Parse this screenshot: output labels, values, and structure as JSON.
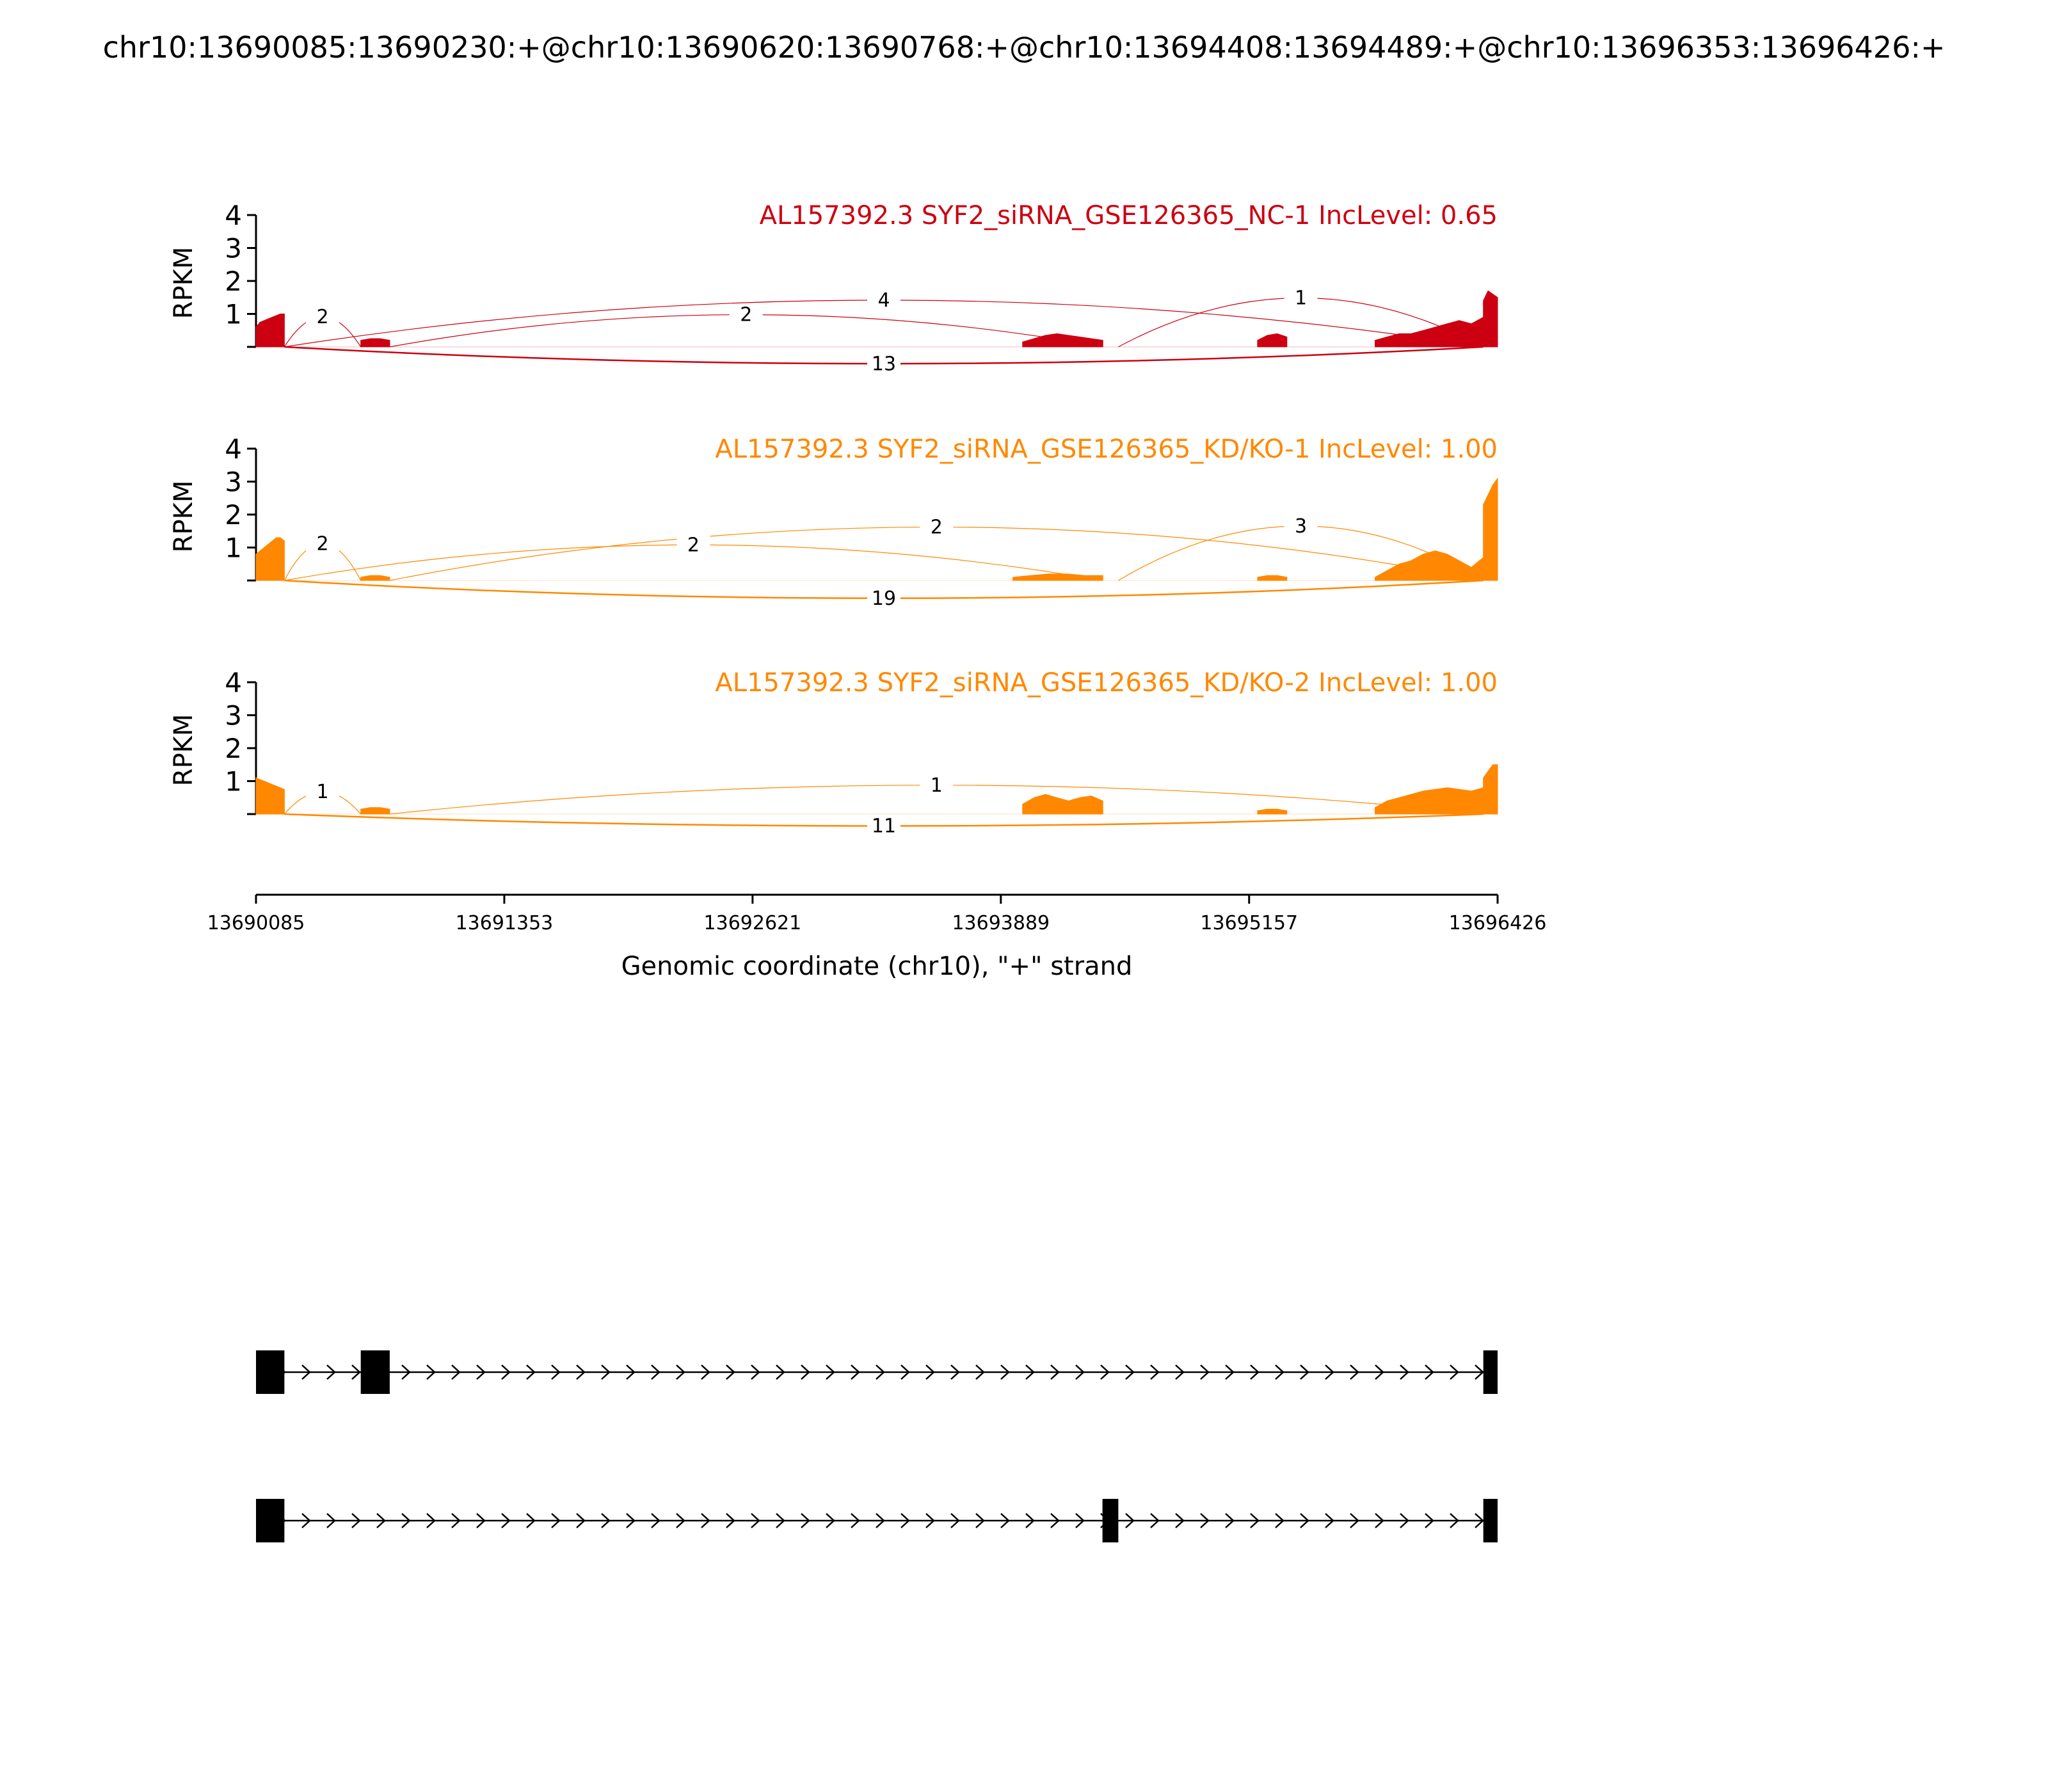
{
  "page_title": "chr10:13690085:13690230:+@chr10:13690620:13690768:+@chr10:13694408:13694489:+@chr10:13696353:13696426:+",
  "chart_data": {
    "type": "sashimi",
    "xlabel": "Genomic coordinate (chr10), \"+\" strand",
    "xlim": [
      13690085,
      13696426
    ],
    "xticks": [
      "13690085",
      "13691353",
      "13692621",
      "13693889",
      "13695157",
      "13696426"
    ],
    "ylabel": "RPKM",
    "yticks": [
      "1",
      "2",
      "3",
      "4"
    ],
    "ylim": [
      0,
      4
    ],
    "panels": [
      {
        "title": "AL157392.3 SYF2_siRNA_GSE126365_NC-1 IncLevel: 0.65",
        "color": "#cc0011",
        "coverage": [
          {
            "start": 13690085,
            "end": 13690230,
            "rpkm": [
              0.6,
              0.75,
              0.8,
              0.85,
              0.9,
              0.95,
              1.0,
              1.0
            ]
          },
          {
            "start": 13690620,
            "end": 13690768,
            "rpkm": [
              0.2,
              0.25,
              0.25,
              0.2
            ]
          },
          {
            "start": 13694000,
            "end": 13694410,
            "rpkm": [
              0.15,
              0.25,
              0.35,
              0.4,
              0.35,
              0.3,
              0.25,
              0.2
            ]
          },
          {
            "start": 13695200,
            "end": 13695350,
            "rpkm": [
              0.2,
              0.35,
              0.4,
              0.3
            ]
          },
          {
            "start": 13695800,
            "end": 13696353,
            "rpkm": [
              0.2,
              0.3,
              0.4,
              0.4,
              0.5,
              0.6,
              0.7,
              0.8,
              0.7,
              0.9
            ]
          },
          {
            "start": 13696353,
            "end": 13696426,
            "rpkm": [
              1.4,
              1.7,
              1.6,
              1.5
            ]
          }
        ],
        "junctions": [
          {
            "from": 13690230,
            "to": 13690620,
            "count": "2",
            "side": "above",
            "height": 1.35
          },
          {
            "from": 13690768,
            "to": 13694408,
            "count": "2",
            "side": "above",
            "height": 1.45
          },
          {
            "from": 13690230,
            "to": 13696353,
            "count": "4",
            "side": "above",
            "height": 2.1
          },
          {
            "from": 13694489,
            "to": 13696353,
            "count": "1",
            "side": "above",
            "height": 2.2
          },
          {
            "from": 13690230,
            "to": 13696353,
            "count": "13",
            "side": "below",
            "height": 0.85
          }
        ]
      },
      {
        "title": "AL157392.3 SYF2_siRNA_GSE126365_KD/KO-1 IncLevel: 1.00",
        "color": "#ff8800",
        "coverage": [
          {
            "start": 13690085,
            "end": 13690230,
            "rpkm": [
              0.8,
              0.9,
              1.0,
              1.1,
              1.2,
              1.3,
              1.3,
              1.2
            ]
          },
          {
            "start": 13690620,
            "end": 13690768,
            "rpkm": [
              0.1,
              0.15,
              0.15,
              0.1
            ]
          },
          {
            "start": 13693950,
            "end": 13694410,
            "rpkm": [
              0.1,
              0.15,
              0.2,
              0.2,
              0.15,
              0.15
            ]
          },
          {
            "start": 13695200,
            "end": 13695350,
            "rpkm": [
              0.1,
              0.15,
              0.15,
              0.1
            ]
          },
          {
            "start": 13695800,
            "end": 13696353,
            "rpkm": [
              0.1,
              0.3,
              0.5,
              0.6,
              0.8,
              0.9,
              0.8,
              0.6,
              0.4,
              0.7
            ]
          },
          {
            "start": 13696353,
            "end": 13696426,
            "rpkm": [
              2.3,
              2.6,
              2.9,
              3.1
            ]
          }
        ],
        "junctions": [
          {
            "from": 13690230,
            "to": 13690620,
            "count": "2",
            "side": "above",
            "height": 1.65
          },
          {
            "from": 13690768,
            "to": 13696353,
            "count": "2",
            "side": "above",
            "height": 2.4
          },
          {
            "from": 13690230,
            "to": 13694408,
            "count": "2",
            "side": "above",
            "height": 1.6
          },
          {
            "from": 13694489,
            "to": 13696353,
            "count": "3",
            "side": "above",
            "height": 2.45
          },
          {
            "from": 13690230,
            "to": 13696353,
            "count": "19",
            "side": "below",
            "height": 0.9
          }
        ]
      },
      {
        "title": "AL157392.3 SYF2_siRNA_GSE126365_KD/KO-2 IncLevel: 1.00",
        "color": "#ff8800",
        "coverage": [
          {
            "start": 13690085,
            "end": 13690230,
            "rpkm": [
              1.1,
              1.05,
              1.0,
              0.95,
              0.9,
              0.85,
              0.8,
              0.75
            ]
          },
          {
            "start": 13690620,
            "end": 13690768,
            "rpkm": [
              0.15,
              0.2,
              0.2,
              0.15
            ]
          },
          {
            "start": 13694000,
            "end": 13694410,
            "rpkm": [
              0.3,
              0.5,
              0.6,
              0.5,
              0.4,
              0.5,
              0.55,
              0.4
            ]
          },
          {
            "start": 13695200,
            "end": 13695350,
            "rpkm": [
              0.1,
              0.15,
              0.15,
              0.1
            ]
          },
          {
            "start": 13695800,
            "end": 13696353,
            "rpkm": [
              0.2,
              0.4,
              0.5,
              0.6,
              0.7,
              0.75,
              0.8,
              0.75,
              0.7,
              0.8
            ]
          },
          {
            "start": 13696353,
            "end": 13696426,
            "rpkm": [
              1.1,
              1.3,
              1.5,
              1.5
            ]
          }
        ],
        "junctions": [
          {
            "from": 13690230,
            "to": 13690620,
            "count": "1",
            "side": "above",
            "height": 1.0
          },
          {
            "from": 13690768,
            "to": 13696353,
            "count": "1",
            "side": "above",
            "height": 1.3
          },
          {
            "from": 13690230,
            "to": 13696353,
            "count": "11",
            "side": "below",
            "height": 0.6
          }
        ]
      }
    ],
    "transcripts": [
      {
        "exons": [
          [
            13690085,
            13690230
          ],
          [
            13690620,
            13690768
          ],
          [
            13696353,
            13696426
          ]
        ]
      },
      {
        "exons": [
          [
            13690085,
            13690230
          ],
          [
            13694408,
            13694489
          ],
          [
            13696353,
            13696426
          ]
        ]
      }
    ]
  }
}
